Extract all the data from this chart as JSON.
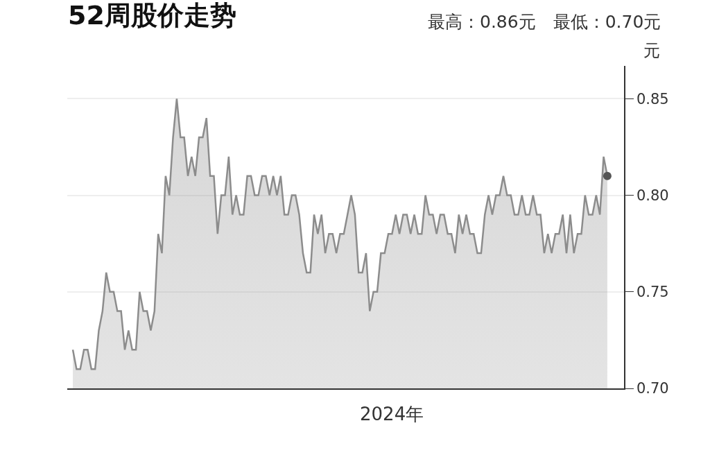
{
  "chart_data": {
    "type": "area",
    "title": "52周股价走势",
    "subtitle": "最高：0.86元　最低：0.70元",
    "ylabel": "元",
    "annotations": [
      "2024年"
    ],
    "categories": [
      null,
      null,
      null,
      null,
      null,
      null,
      null,
      null,
      null,
      null,
      null,
      null,
      null,
      null,
      null,
      null,
      null,
      null,
      null,
      null,
      null,
      null,
      null,
      null,
      null,
      null,
      null,
      null,
      null,
      null,
      null,
      null,
      null,
      null,
      null,
      null,
      null,
      null,
      null,
      null,
      null,
      null,
      null,
      null,
      null,
      null,
      null,
      null,
      null,
      null,
      null,
      null,
      null,
      null,
      null,
      null,
      null,
      null,
      null,
      null,
      null,
      null,
      null,
      null,
      null,
      null,
      null,
      null,
      null,
      null,
      null,
      null,
      null,
      null,
      null,
      null,
      null,
      null,
      null,
      null,
      null,
      null,
      null,
      null,
      null,
      null,
      null,
      null,
      null,
      null,
      null,
      null,
      null,
      null,
      null,
      null,
      null,
      null,
      null,
      null,
      null,
      null,
      null,
      null,
      null,
      null,
      null,
      null,
      null,
      null,
      null,
      null,
      null,
      null,
      null,
      null,
      null,
      null,
      null,
      null,
      null,
      null,
      null,
      null,
      null,
      null,
      null,
      null,
      null,
      null,
      null,
      null,
      null,
      null,
      null,
      null,
      null,
      null,
      null,
      null,
      null,
      null,
      null,
      null,
      null
    ],
    "ylim": [
      0.7,
      0.867
    ],
    "yticks": [
      {
        "value": 0.7,
        "label": "0.70"
      },
      {
        "value": 0.75,
        "label": "0.75"
      },
      {
        "value": 0.8,
        "label": "0.80"
      },
      {
        "value": 0.85,
        "label": "0.85"
      }
    ],
    "grid": "y",
    "series": [
      {
        "color": "#8c8c8c",
        "values": [
          0.72,
          0.71,
          0.71,
          0.72,
          0.72,
          0.71,
          0.71,
          0.73,
          0.74,
          0.76,
          0.75,
          0.75,
          0.74,
          0.74,
          0.72,
          0.73,
          0.72,
          0.72,
          0.75,
          0.74,
          0.74,
          0.73,
          0.74,
          0.78,
          0.77,
          0.81,
          0.8,
          0.83,
          0.85,
          0.83,
          0.83,
          0.81,
          0.82,
          0.81,
          0.83,
          0.83,
          0.84,
          0.81,
          0.81,
          0.78,
          0.8,
          0.8,
          0.82,
          0.79,
          0.8,
          0.79,
          0.79,
          0.81,
          0.81,
          0.8,
          0.8,
          0.81,
          0.81,
          0.8,
          0.81,
          0.8,
          0.81,
          0.79,
          0.79,
          0.8,
          0.8,
          0.79,
          0.77,
          0.76,
          0.76,
          0.79,
          0.78,
          0.79,
          0.77,
          0.78,
          0.78,
          0.77,
          0.78,
          0.78,
          0.79,
          0.8,
          0.79,
          0.76,
          0.76,
          0.77,
          0.74,
          0.75,
          0.75,
          0.77,
          0.77,
          0.78,
          0.78,
          0.79,
          0.78,
          0.79,
          0.79,
          0.78,
          0.79,
          0.78,
          0.78,
          0.8,
          0.79,
          0.79,
          0.78,
          0.79,
          0.79,
          0.78,
          0.78,
          0.77,
          0.79,
          0.78,
          0.79,
          0.78,
          0.78,
          0.77,
          0.77,
          0.79,
          0.8,
          0.79,
          0.8,
          0.8,
          0.81,
          0.8,
          0.8,
          0.79,
          0.79,
          0.8,
          0.79,
          0.79,
          0.8,
          0.79,
          0.79,
          0.77,
          0.78,
          0.77,
          0.78,
          0.78,
          0.79,
          0.77,
          0.79,
          0.77,
          0.78,
          0.78,
          0.8,
          0.79,
          0.79,
          0.8,
          0.79,
          0.82,
          0.81
        ]
      },
      {
        "type": "scatter",
        "color": "#555555",
        "values": [
          null,
          null,
          null,
          null,
          null,
          null,
          null,
          null,
          null,
          null,
          null,
          null,
          null,
          null,
          null,
          null,
          null,
          null,
          null,
          null,
          null,
          null,
          null,
          null,
          null,
          null,
          null,
          null,
          null,
          null,
          null,
          null,
          null,
          null,
          null,
          null,
          null,
          null,
          null,
          null,
          null,
          null,
          null,
          null,
          null,
          null,
          null,
          null,
          null,
          null,
          null,
          null,
          null,
          null,
          null,
          null,
          null,
          null,
          null,
          null,
          null,
          null,
          null,
          null,
          null,
          null,
          null,
          null,
          null,
          null,
          null,
          null,
          null,
          null,
          null,
          null,
          null,
          null,
          null,
          null,
          null,
          null,
          null,
          null,
          null,
          null,
          null,
          null,
          null,
          null,
          null,
          null,
          null,
          null,
          null,
          null,
          null,
          null,
          null,
          null,
          null,
          null,
          null,
          null,
          null,
          null,
          null,
          null,
          null,
          null,
          null,
          null,
          null,
          null,
          null,
          null,
          null,
          null,
          null,
          null,
          null,
          null,
          null,
          null,
          null,
          null,
          null,
          null,
          null,
          null,
          null,
          null,
          null,
          null,
          null,
          null,
          null,
          null,
          null,
          null,
          null,
          null,
          null,
          null,
          0.81
        ]
      }
    ]
  }
}
